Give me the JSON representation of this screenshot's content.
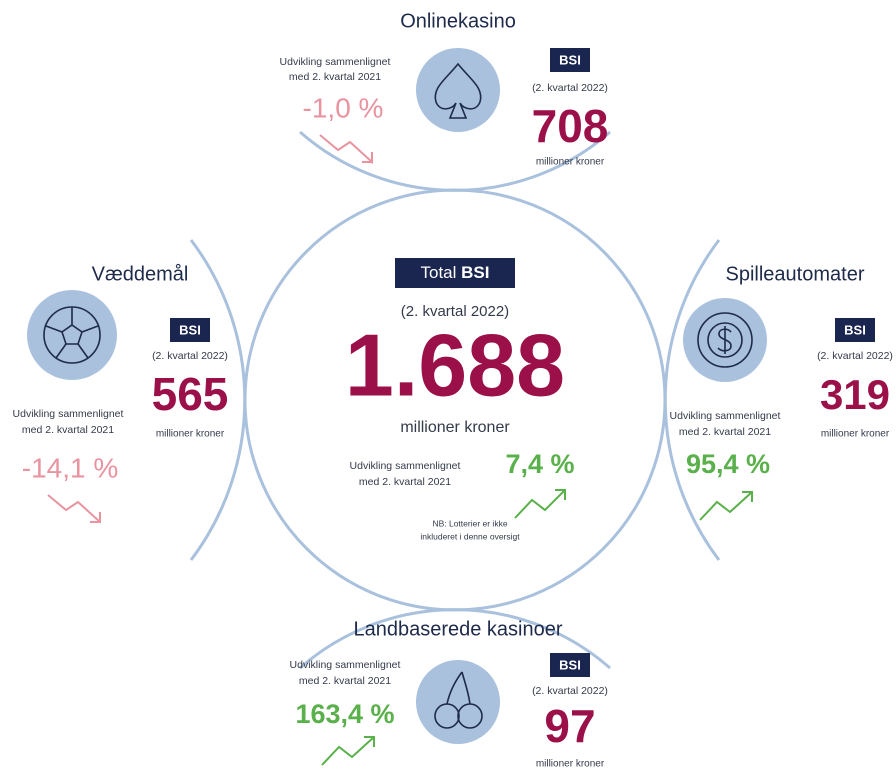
{
  "center": {
    "badge_prefix": "Total",
    "badge": "BSI",
    "period": "(2. kvartal 2022)",
    "value": "1.688",
    "unit": "millioner kroner",
    "change_label_1": "Udvikling sammenlignet",
    "change_label_2": "med 2. kvartal 2021",
    "change": "7,4 %",
    "note_1": "NB: Lotterier er ikke",
    "note_2": "inkluderet i denne oversigt"
  },
  "segments": [
    {
      "title": "Onlinekasino",
      "badge": "BSI",
      "period": "(2. kvartal 2022)",
      "value": "708",
      "unit": "millioner kroner",
      "change_label_1": "Udvikling sammenlignet",
      "change_label_2": "med 2. kvartal 2021",
      "change": "-1,0 %"
    },
    {
      "title": "Væddemål",
      "badge": "BSI",
      "period": "(2. kvartal 2022)",
      "value": "565",
      "unit": "millioner kroner",
      "change_label_1": "Udvikling sammenlignet",
      "change_label_2": "med 2. kvartal 2021",
      "change": "-14,1 %"
    },
    {
      "title": "Spilleautomater",
      "badge": "BSI",
      "period": "(2. kvartal 2022)",
      "value": "319",
      "unit": "millioner kroner",
      "change_label_1": "Udvikling sammenlignet",
      "change_label_2": "med 2. kvartal 2021",
      "change": "95,4 %"
    },
    {
      "title": "Landbaserede kasinoer",
      "badge": "BSI",
      "period": "(2. kvartal 2022)",
      "value": "97",
      "unit": "millioner kroner",
      "change_label_1": "Udvikling sammenlignet",
      "change_label_2": "med 2. kvartal 2021",
      "change": "163,4 %"
    }
  ]
}
